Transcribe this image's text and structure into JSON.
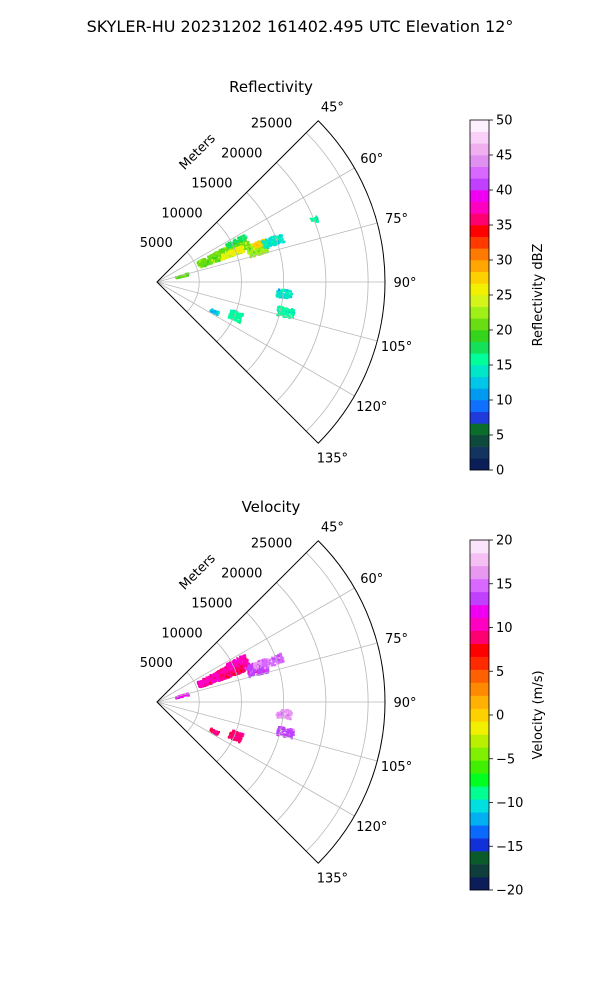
{
  "figure": {
    "title": "SKYLER-HU  20231202  161402.495 UTC Elevation 12°"
  },
  "chart_data": [
    {
      "type": "heatmap",
      "projection": "polar-sector",
      "title": "Reflectivity",
      "radial_label": "Meters",
      "radial_ticks": [
        5000,
        10000,
        15000,
        20000,
        25000
      ],
      "r_max": 27000,
      "angle_range_deg": [
        45,
        135
      ],
      "angle_ticks_deg": [
        45,
        60,
        75,
        90,
        105,
        120,
        135
      ],
      "angle_tick_labels": [
        "45°",
        "60°",
        "75°",
        "90°",
        "105°",
        "120°",
        "135°"
      ],
      "grid": true,
      "colorbar": {
        "label": "Reflectivity dBZ",
        "min": 0,
        "max": 50,
        "ticks": [
          0,
          5,
          10,
          15,
          20,
          25,
          30,
          35,
          40,
          45,
          50
        ],
        "tick_labels": [
          "0",
          "5",
          "10",
          "15",
          "20",
          "25",
          "30",
          "35",
          "40",
          "45",
          "50"
        ]
      },
      "echoes": [
        {
          "angle": 66,
          "r": 8500,
          "angle_width": 8,
          "r_width": 6500,
          "value": 21
        },
        {
          "angle": 68,
          "r": 9500,
          "angle_width": 4,
          "r_width": 3000,
          "value": 25
        },
        {
          "angle": 71,
          "r": 12500,
          "angle_width": 7,
          "r_width": 2500,
          "value": 22
        },
        {
          "angle": 69,
          "r": 12800,
          "angle_width": 3,
          "r_width": 1500,
          "value": 28
        },
        {
          "angle": 62,
          "r": 10500,
          "angle_width": 3,
          "r_width": 2500,
          "value": 17
        },
        {
          "angle": 70,
          "r": 14500,
          "angle_width": 4,
          "r_width": 2500,
          "value": 14
        },
        {
          "angle": 74,
          "r": 3000,
          "angle_width": 4,
          "r_width": 1500,
          "value": 21
        },
        {
          "angle": 68,
          "r": 20000,
          "angle_width": 2,
          "r_width": 800,
          "value": 15
        },
        {
          "angle": 95,
          "r": 15000,
          "angle_width": 4,
          "r_width": 1800,
          "value": 14
        },
        {
          "angle": 103,
          "r": 15500,
          "angle_width": 4,
          "r_width": 2000,
          "value": 15
        },
        {
          "angle": 113,
          "r": 10000,
          "angle_width": 6,
          "r_width": 1500,
          "value": 15
        },
        {
          "angle": 117,
          "r": 7500,
          "angle_width": 3,
          "r_width": 1000,
          "value": 13
        }
      ]
    },
    {
      "type": "heatmap",
      "projection": "polar-sector",
      "title": "Velocity",
      "radial_label": "Meters",
      "radial_ticks": [
        5000,
        10000,
        15000,
        20000,
        25000
      ],
      "r_max": 27000,
      "angle_range_deg": [
        45,
        135
      ],
      "angle_ticks_deg": [
        45,
        60,
        75,
        90,
        105,
        120,
        135
      ],
      "angle_tick_labels": [
        "45°",
        "60°",
        "75°",
        "90°",
        "105°",
        "120°",
        "135°"
      ],
      "grid": true,
      "colorbar": {
        "label": "Velocity (m/s)",
        "min": -20,
        "max": 20,
        "ticks": [
          -20,
          -15,
          -10,
          -5,
          0,
          5,
          10,
          15,
          20
        ],
        "tick_labels": [
          "−20",
          "−15",
          "−10",
          "−5",
          "0",
          "5",
          "10",
          "15",
          "20"
        ]
      },
      "echoes": [
        {
          "angle": 66,
          "r": 8500,
          "angle_width": 8,
          "r_width": 6500,
          "value": 10
        },
        {
          "angle": 68,
          "r": 9500,
          "angle_width": 4,
          "r_width": 3000,
          "value": 9
        },
        {
          "angle": 71,
          "r": 12500,
          "angle_width": 7,
          "r_width": 2500,
          "value": 13
        },
        {
          "angle": 69,
          "r": 12800,
          "angle_width": 3,
          "r_width": 1500,
          "value": 16
        },
        {
          "angle": 62,
          "r": 10500,
          "angle_width": 3,
          "r_width": 2500,
          "value": 10
        },
        {
          "angle": 70,
          "r": 14500,
          "angle_width": 4,
          "r_width": 2500,
          "value": 15
        },
        {
          "angle": 74,
          "r": 3000,
          "angle_width": 4,
          "r_width": 1500,
          "value": 12
        },
        {
          "angle": 95,
          "r": 15000,
          "angle_width": 4,
          "r_width": 1800,
          "value": 16
        },
        {
          "angle": 103,
          "r": 15500,
          "angle_width": 4,
          "r_width": 2000,
          "value": 14
        },
        {
          "angle": 113,
          "r": 10000,
          "angle_width": 6,
          "r_width": 1500,
          "value": 9
        },
        {
          "angle": 117,
          "r": 7500,
          "angle_width": 3,
          "r_width": 1000,
          "value": 9
        }
      ]
    }
  ]
}
